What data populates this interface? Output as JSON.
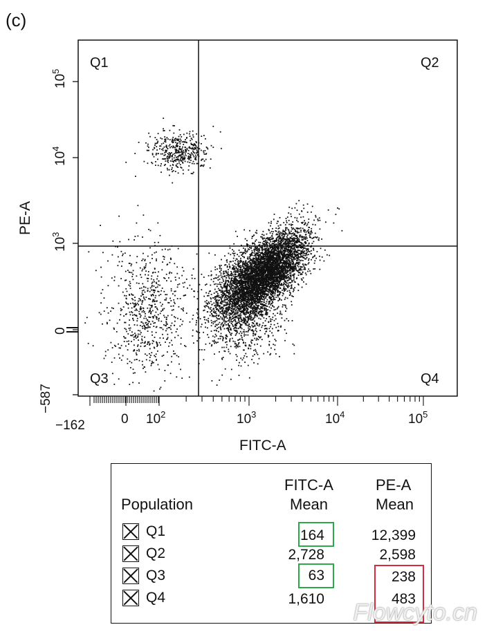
{
  "panel_label": "(c)",
  "chart_data": {
    "type": "scatter",
    "xlabel": "FITC-A",
    "ylabel": "PE-A",
    "xscale": "biexponential",
    "yscale": "biexponential",
    "x_ticks": [
      "−162",
      "0",
      "10^2",
      "10^3",
      "10^4",
      "10^5"
    ],
    "y_ticks": [
      "−587",
      "0",
      "10^3",
      "10^4",
      "10^5"
    ],
    "quadrant_gate": {
      "x": 280,
      "y": 950
    },
    "quadrants": [
      "Q1",
      "Q2",
      "Q3",
      "Q4"
    ],
    "clusters": [
      {
        "quadrant": "Q1",
        "fitc_center": 164,
        "pe_center": 12399,
        "density": "sparse"
      },
      {
        "quadrant": "Q3",
        "fitc_center": 63,
        "pe_center": 238,
        "density": "sparse"
      },
      {
        "quadrant": "Q4",
        "fitc_center": 1610,
        "pe_center": 483,
        "density": "dense"
      },
      {
        "quadrant": "Q2",
        "fitc_center": 2728,
        "pe_center": 2598,
        "density": "dense"
      }
    ],
    "grid": false
  },
  "stats_table": {
    "header_population": "Population",
    "header_col1_line1": "FITC-A",
    "header_col1_line2": "Mean",
    "header_col2_line1": "PE-A",
    "header_col2_line2": "Mean",
    "rows": [
      {
        "name": "Q1",
        "fitc_mean": "164",
        "pe_mean": "12,399"
      },
      {
        "name": "Q2",
        "fitc_mean": "2,728",
        "pe_mean": "2,598"
      },
      {
        "name": "Q3",
        "fitc_mean": "63",
        "pe_mean": "238"
      },
      {
        "name": "Q4",
        "fitc_mean": "1,610",
        "pe_mean": "483"
      }
    ],
    "highlight_green": [
      "Q1.fitc_mean",
      "Q3.fitc_mean"
    ],
    "highlight_red": [
      "Q3.pe_mean",
      "Q4.pe_mean"
    ],
    "green_color": "#2ca84a",
    "red_color": "#d62b3c"
  },
  "watermark": "Flowcyto.cn"
}
